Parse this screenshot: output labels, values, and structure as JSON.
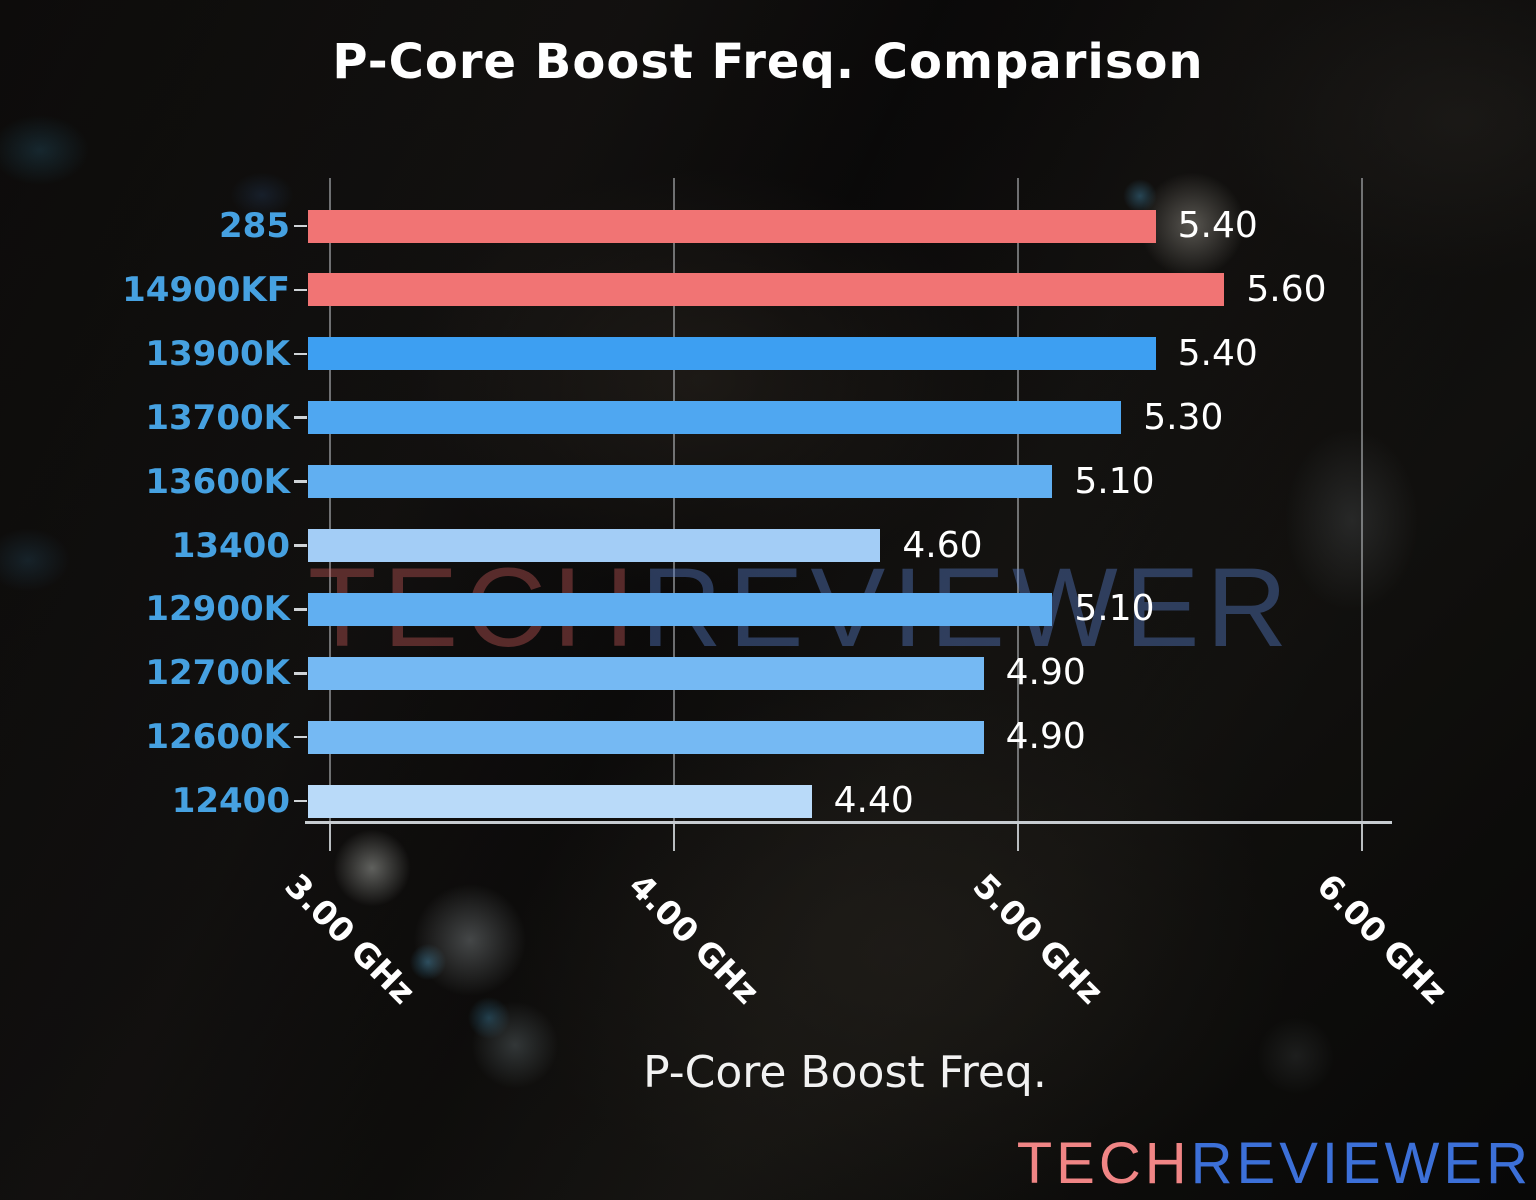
{
  "page": {
    "title": "P-Core Boost Freq. Comparison"
  },
  "chart_data": {
    "type": "bar",
    "orientation": "horizontal",
    "title": "P-Core Boost Freq. Comparison",
    "xlabel": "P-Core Boost Freq.",
    "categories": [
      "285",
      "14900KF",
      "13900K",
      "13700K",
      "13600K",
      "13400",
      "12900K",
      "12700K",
      "12600K",
      "12400"
    ],
    "values": [
      5.4,
      5.6,
      5.4,
      5.3,
      5.1,
      4.6,
      5.1,
      4.9,
      4.9,
      4.4
    ],
    "value_labels": [
      "5.40",
      "5.60",
      "5.40",
      "5.30",
      "5.10",
      "4.60",
      "5.10",
      "4.90",
      "4.90",
      "4.40"
    ],
    "bar_colors": [
      "#F17474",
      "#F17474",
      "#3D9FF2",
      "#4FA7F1",
      "#61AFF1",
      "#A3CDF6",
      "#61AFF1",
      "#75B9F3",
      "#75B9F3",
      "#B9DAF9"
    ],
    "x_ticks": [
      {
        "value": 3,
        "label": "3.00 GHz"
      },
      {
        "value": 4,
        "label": "4.00 GHz"
      },
      {
        "value": 5,
        "label": "5.00 GHz"
      },
      {
        "value": 6,
        "label": "6.00 GHz"
      }
    ],
    "xlim": [
      2.94,
      6.09
    ],
    "grid": true,
    "legend": false,
    "category_label_color": "#46A1E1",
    "bar_value_color": "#FFFFFF",
    "grid_color": "#CDD2D5",
    "accent_red": "#F17474",
    "accent_blue": "#3D9FF2"
  },
  "watermark": {
    "part1": "TECH",
    "part2": "REVIEWER",
    "part1_color": "rgba(200,90,90,0.40)",
    "part2_color": "rgba(90,130,210,0.40)"
  },
  "brand": {
    "part1": "TECH",
    "part2": "REVIEWER",
    "part1_color": "#F08585",
    "part2_color": "#3C70D8"
  }
}
